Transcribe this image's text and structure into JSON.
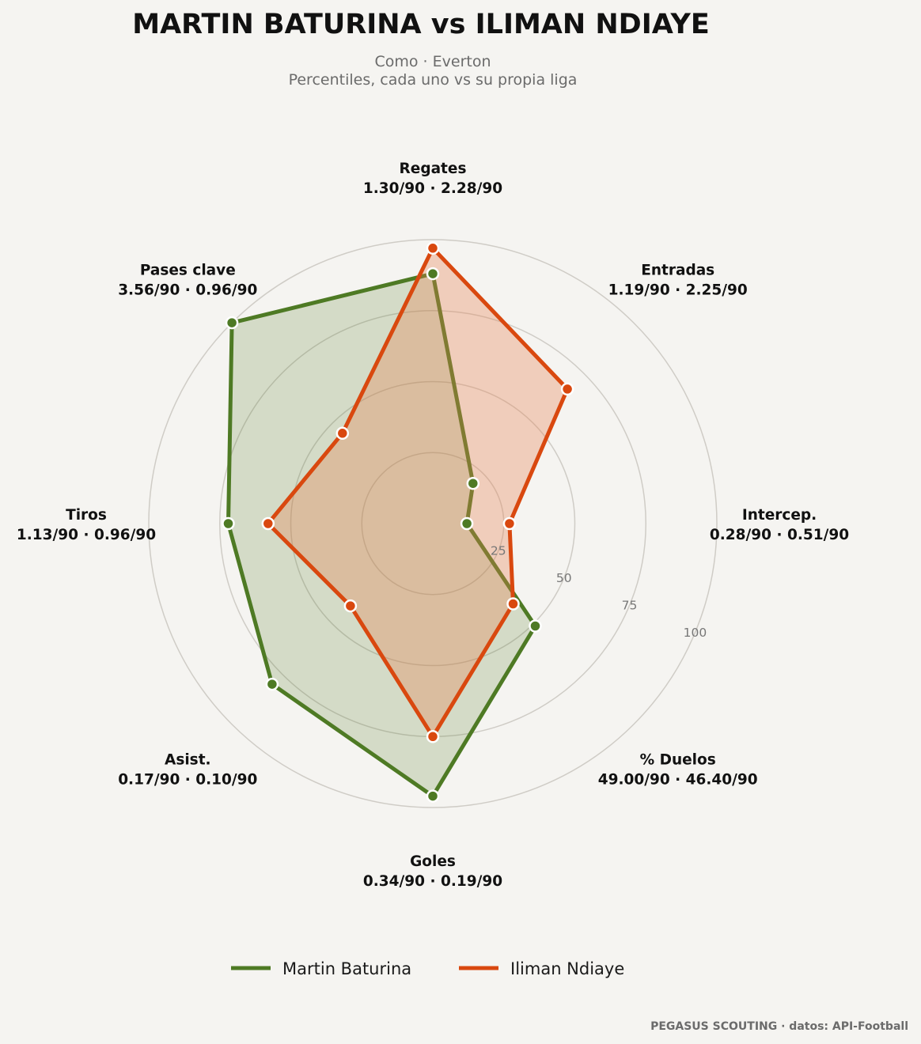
{
  "chart_data": {
    "type": "radar",
    "title": "MARTIN BATURINA  vs  ILIMAN NDIAYE",
    "subtitle_line1": "Como · Everton",
    "subtitle_line2": "Percentiles, cada uno vs su propia liga",
    "rlim": [
      0,
      100
    ],
    "rings": [
      25,
      50,
      75,
      100
    ],
    "ring_labels": [
      "25",
      "50",
      "75",
      "100"
    ],
    "axes": [
      {
        "name": "Regates",
        "values_label": "1.30/90 · 2.28/90"
      },
      {
        "name": "Entradas",
        "values_label": "1.19/90 · 2.25/90"
      },
      {
        "name": "Intercep.",
        "values_label": "0.28/90 · 0.51/90"
      },
      {
        "name": "% Duelos",
        "values_label": "49.00/90 · 46.40/90"
      },
      {
        "name": "Goles",
        "values_label": "0.34/90 · 0.19/90"
      },
      {
        "name": "Asist.",
        "values_label": "0.17/90 · 0.10/90"
      },
      {
        "name": "Tiros",
        "values_label": "1.13/90 · 0.96/90"
      },
      {
        "name": "Pases clave",
        "values_label": "3.56/90 · 0.96/90"
      }
    ],
    "series": [
      {
        "name": "Martin Baturina",
        "color": "#4e7a24",
        "fill": "rgba(78,122,36,0.20)",
        "values": [
          88,
          20,
          12,
          51,
          96,
          80,
          72,
          100
        ]
      },
      {
        "name": "Iliman Ndiaye",
        "color": "#d9480f",
        "fill": "rgba(232,128,80,0.33)",
        "values": [
          97,
          67,
          27,
          40,
          75,
          41,
          58,
          45
        ]
      }
    ],
    "legend_position": "bottom-center",
    "grid": true
  },
  "footer": "PEGASUS SCOUTING · datos: API-Football"
}
